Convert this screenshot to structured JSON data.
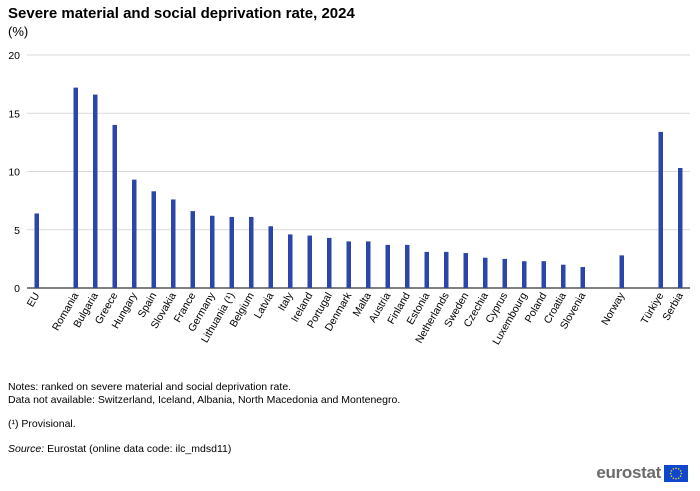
{
  "title": "Severe material and social deprivation rate, 2024",
  "unit": "(%)",
  "notes": {
    "line1": "Notes: ranked on severe material and social deprivation rate.",
    "line2": "Data not available: Switzerland, Iceland, Albania, North Macedonia and Montenegro.",
    "footnote": "(¹) Provisional.",
    "source_label": "Source:",
    "source_text": " Eurostat (online data code: ilc_mdsd11)"
  },
  "logo": {
    "text": "eurostat",
    "flag_color": "#0e47cb",
    "star_color": "#ffd617"
  },
  "chart_data": {
    "type": "bar",
    "title": "Severe material and social deprivation rate, 2024",
    "ylabel": "(%)",
    "ylim": [
      0,
      20
    ],
    "yticks": [
      0,
      5,
      10,
      15,
      20
    ],
    "grid": true,
    "bar_color": "#2b46a8",
    "categories": [
      "EU",
      "",
      "Romania",
      "Bulgaria",
      "Greece",
      "Hungary",
      "Spain",
      "Slovakia",
      "France",
      "Germany",
      "Lithuania (¹)",
      "Belgium",
      "Latvia",
      "Italy",
      "Ireland",
      "Portugal",
      "Denmark",
      "Malta",
      "Austria",
      "Finland",
      "Estonia",
      "Netherlands",
      "Sweden",
      "Czechia",
      "Cyprus",
      "Luxembourg",
      "Poland",
      "Croatia",
      "Slovenia",
      "",
      "Norway",
      "",
      "Türkiye",
      "Serbia"
    ],
    "values": [
      6.4,
      null,
      17.2,
      16.6,
      14.0,
      9.3,
      8.3,
      7.6,
      6.6,
      6.2,
      6.1,
      6.1,
      5.3,
      4.6,
      4.5,
      4.3,
      4.0,
      4.0,
      3.7,
      3.7,
      3.1,
      3.1,
      3.0,
      2.6,
      2.5,
      2.3,
      2.3,
      2.0,
      1.8,
      null,
      2.8,
      null,
      13.4,
      10.3
    ]
  }
}
